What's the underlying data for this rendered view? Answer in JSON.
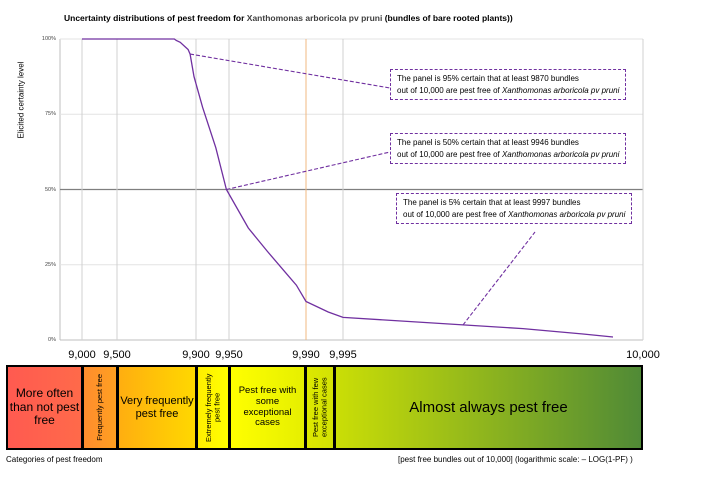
{
  "chart_data": {
    "type": "line",
    "title": "Uncertainty distributions of pest freedom for Xanthomonas arboricola pv pruni (bundles of bare rooted plants))",
    "title_parts": [
      "Uncertainty distributions of pest freedom for ",
      "Xanthomonas arboricola pv pruni",
      " (bundles of bare rooted plants))"
    ],
    "ylabel": "Elicited certainty level",
    "xlabel": "[pest free bundles out of 10,000] (logarithmic scale: – LOG(1-PF) )",
    "x_scale": "log(1-PF)",
    "xlim": [
      8900,
      10000
    ],
    "ylim": [
      0,
      100
    ],
    "x_ticks": [
      {
        "value": 9000,
        "label": "9,000"
      },
      {
        "value": 9500,
        "label": "9,500"
      },
      {
        "value": 9900,
        "label": "9,900"
      },
      {
        "value": 9950,
        "label": "9,950"
      },
      {
        "value": 9990,
        "label": "9,990"
      },
      {
        "value": 9995,
        "label": "9,995"
      },
      {
        "value": 10000,
        "label": "10,000"
      }
    ],
    "y_ticks": [
      {
        "value": 0,
        "label": "0%"
      },
      {
        "value": 25,
        "label": "25%"
      },
      {
        "value": 50,
        "label": "50%"
      },
      {
        "value": 75,
        "label": "75%"
      },
      {
        "value": 100,
        "label": "100%"
      }
    ],
    "reference_line_y": 50,
    "grid": true,
    "series": [
      {
        "x": [
          9000,
          9500,
          9790,
          9800,
          9820,
          9860,
          9870,
          9890,
          9910,
          9930,
          9946,
          9960,
          9970,
          9980,
          9985,
          9990,
          9993,
          9995,
          9997,
          9998,
          9999,
          9999.5
        ],
        "y": [
          100,
          100,
          100,
          99.5,
          98.9,
          96.5,
          95,
          87.5,
          77.3,
          63.9,
          50,
          37.2,
          29.4,
          21.9,
          18.2,
          12.8,
          9.3,
          7.5,
          5,
          3.8,
          2,
          1
        ]
      }
    ],
    "annotations": [
      {
        "text": "The panel is 95% certain that at least 9870 bundles",
        "text2": "out of 10,000 are pest free of ",
        "italic": "Xanthomonas arboricola pv pruni",
        "x": 9870,
        "y": 95
      },
      {
        "text": "The panel is 50% certain that at least 9946 bundles",
        "text2": "out of 10,000 are pest free of ",
        "italic": "Xanthomonas arboricola pv pruni",
        "x": 9946,
        "y": 50
      },
      {
        "text": "The panel is 5% certain that at least 9997 bundles",
        "text2": "out of 10,000 are pest free of ",
        "italic": "Xanthomonas arboricola pv pruni",
        "x": 9997,
        "y": 5
      }
    ]
  },
  "categories_caption": "Categories of pest freedom",
  "categories": [
    {
      "label": "More often than not pest free",
      "color_from": "#ff5a50",
      "color_to": "#ff6a4a",
      "vertical": false,
      "size": "big"
    },
    {
      "label": "Frequently pest free",
      "color_from": "#ff8c2e",
      "color_to": "#ffa020",
      "vertical": true
    },
    {
      "label": "Very frequently pest free",
      "color_from": "#ffae10",
      "color_to": "#ffd800",
      "vertical": false,
      "size": "mid"
    },
    {
      "label": "Extremely frequently pest free",
      "color_from": "#ffee00",
      "color_to": "#ffff00",
      "vertical": true
    },
    {
      "label": "Pest free with some exceptional cases",
      "color_from": "#ffff00",
      "color_to": "#e6ef00",
      "vertical": false,
      "size": "small"
    },
    {
      "label": "Pest free with few exceptional cases",
      "color_from": "#dde800",
      "color_to": "#d2e204",
      "vertical": true
    },
    {
      "label": "Almost always pest free",
      "color_from": "#cade06",
      "color_to": "#508a36",
      "vertical": false,
      "size": "big"
    }
  ],
  "colors": {
    "curve": "#7030a0",
    "callout_border": "#7030a0",
    "grid": "#d0d0d0",
    "reference": "#7f7f7f",
    "orange_grid": "#f2b880"
  }
}
